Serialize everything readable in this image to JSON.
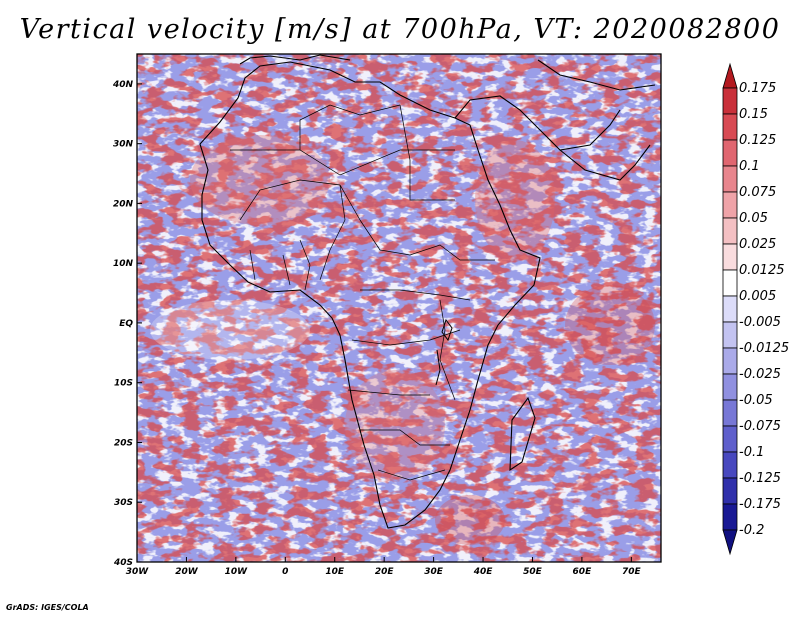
{
  "title": "Vertical velocity [m/s] at 700hPa, VT: 2020082800",
  "credit": "GrADS: IGES/COLA",
  "map": {
    "lon_range": [
      -30,
      76
    ],
    "lat_range": [
      -40,
      45
    ],
    "lon_ticks": [
      {
        "value": -30,
        "label": "30W"
      },
      {
        "value": -20,
        "label": "20W"
      },
      {
        "value": -10,
        "label": "10W"
      },
      {
        "value": 0,
        "label": "0"
      },
      {
        "value": 10,
        "label": "10E"
      },
      {
        "value": 20,
        "label": "20E"
      },
      {
        "value": 30,
        "label": "30E"
      },
      {
        "value": 40,
        "label": "40E"
      },
      {
        "value": 50,
        "label": "50E"
      },
      {
        "value": 60,
        "label": "60E"
      },
      {
        "value": 70,
        "label": "70E"
      }
    ],
    "lat_ticks": [
      {
        "value": 40,
        "label": "40N"
      },
      {
        "value": 30,
        "label": "30N"
      },
      {
        "value": 20,
        "label": "20N"
      },
      {
        "value": 10,
        "label": "10N"
      },
      {
        "value": 0,
        "label": "EQ"
      },
      {
        "value": -10,
        "label": "10S"
      },
      {
        "value": -20,
        "label": "20S"
      },
      {
        "value": -30,
        "label": "30S"
      },
      {
        "value": -40,
        "label": "40S"
      }
    ]
  },
  "colorbar": {
    "levels": [
      "0.175",
      "0.15",
      "0.125",
      "0.1",
      "0.075",
      "0.05",
      "0.025",
      "0.0125",
      "0.005",
      "-0.005",
      "-0.0125",
      "-0.025",
      "-0.05",
      "-0.075",
      "-0.1",
      "-0.125",
      "-0.175",
      "-0.2"
    ],
    "colors": [
      "#b3191f",
      "#c9303a",
      "#d84a53",
      "#e06670",
      "#e8858d",
      "#efa3a8",
      "#f4c0c3",
      "#f9dcde",
      "#ffffff",
      "#dcdcf9",
      "#c3c3f1",
      "#aaaae9",
      "#9090e0",
      "#7777d6",
      "#5f5fcc",
      "#4848bf",
      "#3030ab",
      "#191994",
      "#101080"
    ]
  }
}
